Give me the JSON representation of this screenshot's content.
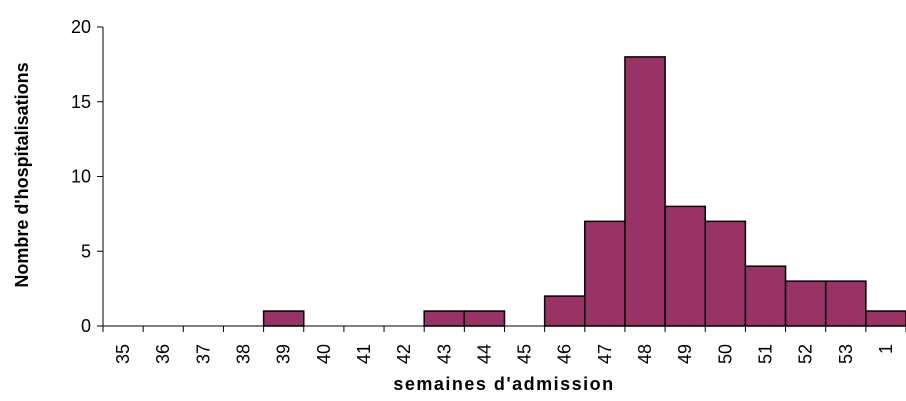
{
  "chart_data": {
    "type": "bar",
    "categories": [
      "35",
      "36",
      "37",
      "38",
      "39",
      "40",
      "41",
      "42",
      "43",
      "44",
      "45",
      "46",
      "47",
      "48",
      "49",
      "50",
      "51",
      "52",
      "53",
      "1"
    ],
    "values": [
      0,
      0,
      0,
      0,
      1,
      0,
      0,
      0,
      1,
      1,
      0,
      2,
      7,
      18,
      8,
      7,
      4,
      3,
      3,
      1
    ],
    "title": "",
    "xlabel": "semaines d'admission",
    "ylabel": "Nombre d'hospitalisations",
    "ylim": [
      0,
      20
    ],
    "yticks": [
      0,
      5,
      10,
      15,
      20
    ],
    "grid": false,
    "legend": "none",
    "bar_color": "#993366",
    "bar_edge_color": "#000000"
  }
}
